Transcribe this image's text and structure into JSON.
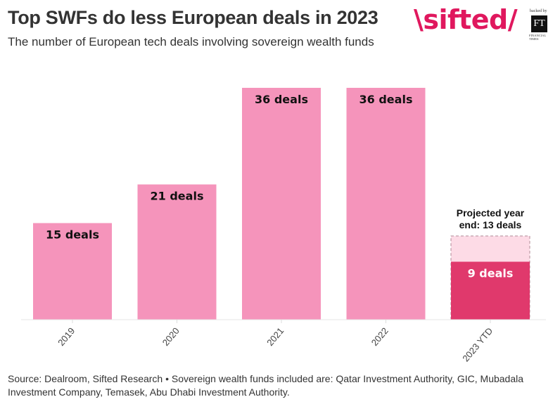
{
  "header": {
    "title": "Top SWFs do less European deals in 2023",
    "subtitle": "The number of European tech deals involving sovereign wealth funds"
  },
  "logo": {
    "brand": "\\sifted/",
    "backed_by": "backed by",
    "ft_mark": "FT",
    "ft_name_line1": "FINANCIAL",
    "ft_name_line2": "TIMES",
    "brand_color": "#e0185e"
  },
  "chart_data": {
    "type": "bar",
    "title": "Top SWFs do less European deals in 2023",
    "subtitle": "The number of European tech deals involving sovereign wealth funds",
    "categories": [
      "2019",
      "2020",
      "2021",
      "2022",
      "2023 YTD"
    ],
    "values": [
      15,
      21,
      36,
      36,
      9
    ],
    "data_labels": [
      "15 deals",
      "21 deals",
      "36 deals",
      "36 deals",
      "9 deals"
    ],
    "projection": {
      "category": "2023 YTD",
      "value": 13,
      "label_line1": "Projected year",
      "label_line2": "end: 13 deals"
    },
    "colors": {
      "past": "#f594bb",
      "current": "#e0396c",
      "projection": "#fddbe6",
      "projection_border": "#b08a96"
    },
    "xlabel": "",
    "ylabel": "",
    "ylim": [
      0,
      36
    ],
    "grid": false,
    "legend": "none"
  },
  "footer": {
    "source": "Source: Dealroom, Sifted Research • Sovereign wealth funds included are: Qatar Investment Authority, GIC, Mubadala Investment Company, Temasek, Abu Dhabi Investment Authority."
  }
}
